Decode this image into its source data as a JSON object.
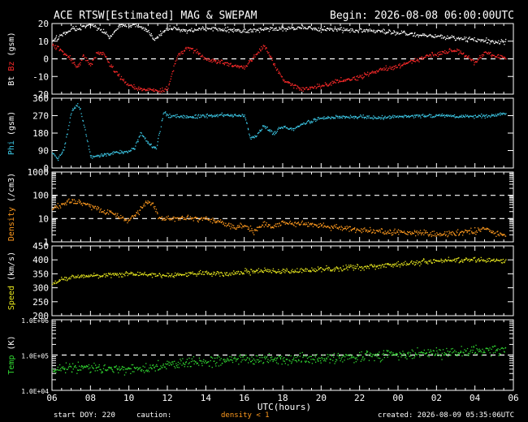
{
  "header": {
    "title": "ACE RTSW[Estimated] MAG & SWEPAM",
    "begin": "Begin: 2026-08-08 06:00:00UTC"
  },
  "footer": {
    "start_doy": "start DOY: 220",
    "caution_label": "caution:",
    "caution_value": "density < 1",
    "created": "created: 2026-08-09 05:35:06UTC"
  },
  "colors": {
    "background": "#000000",
    "frame": "#ffffff",
    "bt": "#ffffff",
    "bz": "#ff2a2a",
    "phi": "#3cc8e6",
    "density": "#ff9a1e",
    "speed": "#e6e61e",
    "temp": "#32dc32"
  },
  "chart_data": [
    {
      "type": "line",
      "name": "mag",
      "ylabel_parts": [
        "Bt",
        "Bz",
        "(gsm)"
      ],
      "ylim": [
        -20,
        20
      ],
      "ticks": [
        "20",
        "10",
        "0",
        "-10",
        "-20"
      ],
      "reference_lines": [
        0
      ],
      "series": [
        {
          "name": "Bt",
          "x": [
            6,
            6.5,
            7,
            7.5,
            8,
            8.3,
            8.6,
            9,
            9.5,
            10,
            10.5,
            11,
            11.3,
            11.6,
            12,
            12.5,
            13,
            13.5,
            14,
            15,
            16,
            17,
            18,
            19,
            20,
            21,
            22,
            23,
            24,
            25,
            26,
            27,
            28,
            29,
            29.6
          ],
          "y": [
            10,
            14,
            17,
            18,
            20,
            18,
            16,
            12,
            19,
            19.5,
            19,
            16,
            11,
            14,
            18,
            17,
            16,
            17,
            17.5,
            17,
            16,
            17,
            17.5,
            18,
            17,
            17,
            16,
            16,
            15,
            14,
            13,
            12,
            11,
            10,
            10
          ]
        },
        {
          "name": "Bz",
          "x": [
            6,
            6.5,
            7,
            7.3,
            7.6,
            8,
            8.3,
            8.6,
            9,
            9.5,
            10,
            10.5,
            11,
            11.5,
            12,
            12.5,
            13,
            13.5,
            14,
            15,
            16,
            17,
            18,
            19,
            20,
            21,
            22,
            23,
            24,
            25,
            26,
            27,
            27.5,
            28,
            28.5,
            29,
            29.6
          ],
          "y": [
            8,
            5,
            0,
            -5,
            2,
            -3,
            3,
            4,
            -3,
            -10,
            -15,
            -17,
            -17,
            -18,
            -17,
            2,
            7,
            4,
            0,
            -2,
            -5,
            8,
            -12,
            -17,
            -15,
            -12,
            -10,
            -6,
            -4,
            0,
            3,
            5,
            2,
            -2,
            4,
            2,
            1
          ]
        }
      ]
    },
    {
      "type": "scatter",
      "name": "phi",
      "ylabel": "Phi (gsm)",
      "ylim": [
        0,
        360
      ],
      "ticks": [
        "360",
        "270",
        "180",
        "90",
        "0"
      ],
      "series": [
        {
          "name": "Phi",
          "x": [
            6,
            6.3,
            6.6,
            7,
            7.3,
            7.5,
            8,
            9,
            10,
            10.3,
            10.6,
            11,
            11.4,
            11.8,
            12,
            13,
            14,
            15,
            16,
            16.3,
            16.6,
            17,
            17.5,
            18,
            18.5,
            19,
            20,
            21,
            22,
            23,
            24,
            25,
            26,
            27,
            28,
            29,
            29.6
          ],
          "y": [
            80,
            50,
            95,
            300,
            330,
            290,
            60,
            75,
            90,
            110,
            180,
            130,
            100,
            290,
            270,
            265,
            270,
            275,
            275,
            150,
            170,
            220,
            180,
            215,
            200,
            230,
            260,
            265,
            265,
            262,
            268,
            270,
            272,
            270,
            268,
            275,
            285
          ]
        }
      ]
    },
    {
      "type": "scatter",
      "name": "density",
      "ylabel": "Density (/cm3)",
      "yscale": "log",
      "ylim": [
        1,
        1000
      ],
      "ticks": [
        "1000",
        "100",
        "10",
        "1"
      ],
      "reference_lines": [
        10,
        100
      ],
      "series": [
        {
          "name": "Density",
          "x": [
            6,
            6.5,
            7,
            7.5,
            8,
            8.5,
            9,
            9.5,
            10,
            10.5,
            11,
            11.5,
            12,
            13,
            14,
            15,
            15.5,
            16,
            16.5,
            17,
            17.5,
            18,
            19,
            20,
            21,
            22,
            23,
            24,
            25,
            26,
            27,
            28,
            28.5,
            29,
            29.6
          ],
          "y": [
            30,
            40,
            60,
            50,
            35,
            25,
            20,
            12,
            9,
            20,
            60,
            12,
            10,
            11,
            10,
            6,
            4,
            5,
            3,
            6,
            5,
            7,
            6,
            5,
            4,
            3.5,
            3,
            2.8,
            2.5,
            2.2,
            2.5,
            3,
            4,
            2.2,
            2
          ]
        }
      ]
    },
    {
      "type": "scatter",
      "name": "speed",
      "ylabel": "Speed (km/s)",
      "ylim": [
        200,
        450
      ],
      "ticks": [
        "450",
        "400",
        "350",
        "300",
        "250",
        "200"
      ],
      "series": [
        {
          "name": "Speed",
          "x": [
            6,
            6.5,
            7,
            8,
            9,
            10,
            11,
            12,
            13,
            14,
            15,
            16,
            17,
            18,
            19,
            20,
            21,
            22,
            23,
            24,
            25,
            26,
            27,
            28,
            29,
            29.6
          ],
          "y": [
            315,
            330,
            340,
            345,
            348,
            352,
            350,
            345,
            352,
            355,
            350,
            358,
            362,
            360,
            365,
            368,
            370,
            375,
            380,
            385,
            392,
            398,
            400,
            402,
            400,
            398
          ]
        }
      ]
    },
    {
      "type": "scatter",
      "name": "temp",
      "ylabel": "Temp (K)",
      "yscale": "log",
      "ylim": [
        10000,
        1000000
      ],
      "ticks": [
        "1.0E+06",
        "1.0E+05",
        "1.0E+04"
      ],
      "reference_lines": [
        100000
      ],
      "series": [
        {
          "name": "Temp",
          "x": [
            6,
            6.5,
            7,
            8,
            9,
            10,
            11,
            12,
            13,
            14,
            15,
            16,
            17,
            18,
            19,
            20,
            21,
            22,
            23,
            24,
            25,
            26,
            27,
            28,
            29,
            29.6
          ],
          "y": [
            35000,
            40000,
            50000,
            45000,
            42000,
            40000,
            45000,
            55000,
            60000,
            70000,
            75000,
            80000,
            85000,
            75000,
            80000,
            85000,
            90000,
            95000,
            100000,
            110000,
            115000,
            120000,
            125000,
            130000,
            140000,
            150000
          ]
        }
      ]
    }
  ],
  "x_axis": {
    "label": "UTC(hours)",
    "range": [
      6,
      30
    ],
    "tick_labels": [
      "06",
      "08",
      "10",
      "12",
      "14",
      "16",
      "18",
      "20",
      "22",
      "00",
      "02",
      "04",
      "06"
    ]
  }
}
